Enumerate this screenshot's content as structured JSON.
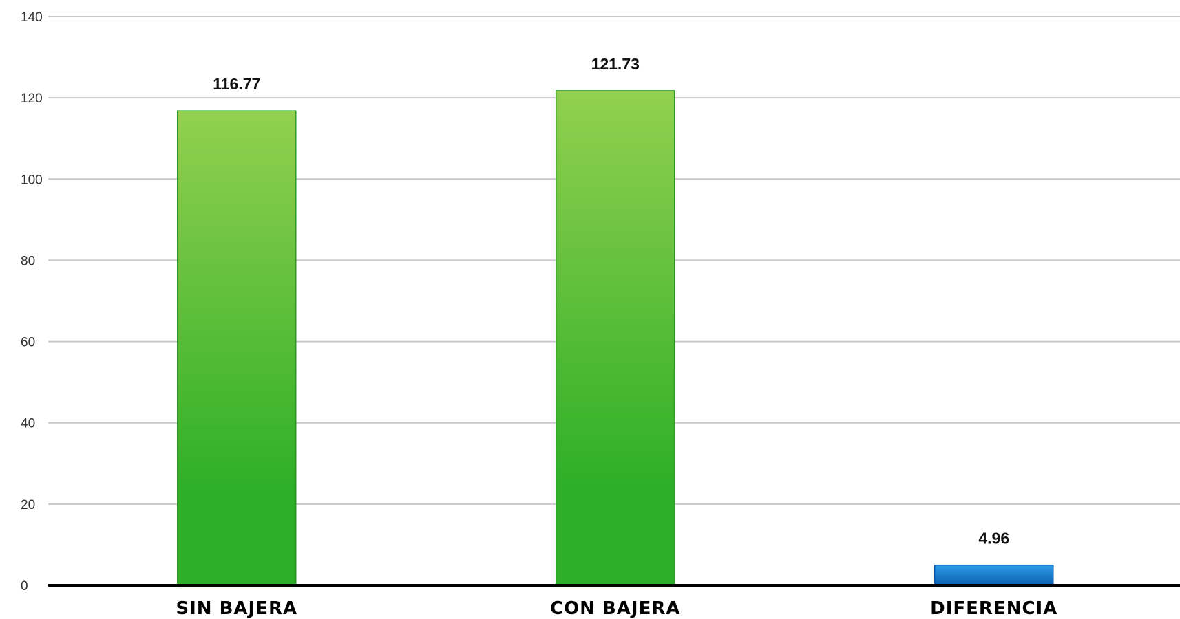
{
  "chart_data": {
    "type": "bar",
    "title": "",
    "xlabel": "",
    "ylabel": "",
    "categories": [
      "SIN BAJERA",
      "CON BAJERA",
      "DIFERENCIA"
    ],
    "values": [
      116.77,
      121.73,
      4.96
    ],
    "value_labels": [
      "116.77",
      "121.73",
      "4.96"
    ],
    "bar_colors": [
      "#3cb034",
      "#3cb034",
      "#1a7fd4"
    ],
    "ylim": [
      0,
      140
    ],
    "yticks": [
      0,
      20,
      40,
      60,
      80,
      100,
      120,
      140
    ],
    "ytick_labels": [
      "0",
      "20",
      "40",
      "60",
      "80",
      "100",
      "120",
      "140"
    ],
    "grid": true,
    "legend": "none"
  }
}
